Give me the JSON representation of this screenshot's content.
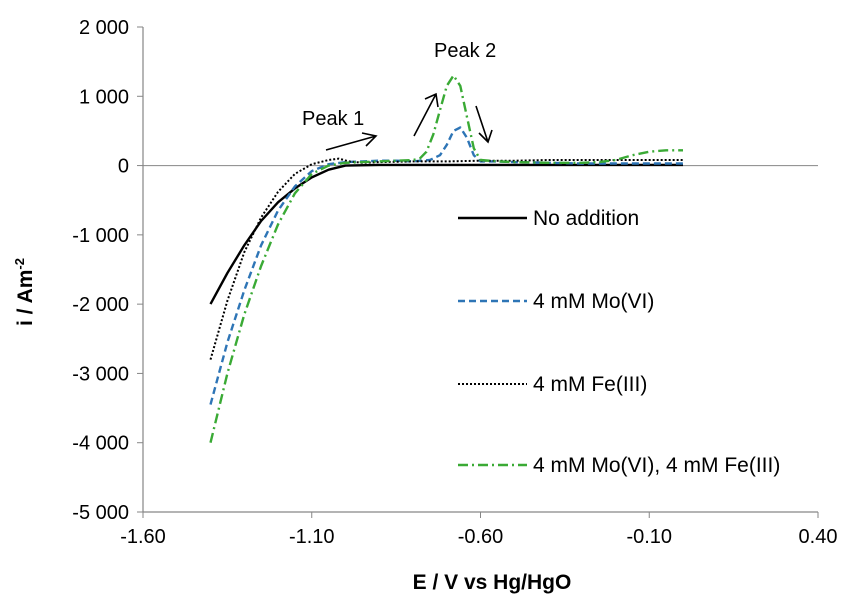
{
  "chart_data": {
    "type": "line",
    "xlabel": "E / V vs Hg/HgO",
    "ylabel_main": "i / Am",
    "ylabel_sup": "-2",
    "xlim": [
      -1.6,
      0.4
    ],
    "ylim": [
      -5000,
      2000
    ],
    "x_ticks": [
      -1.6,
      -1.1,
      -0.6,
      -0.1,
      0.4
    ],
    "x_tick_labels": [
      "-1.60",
      "-1.10",
      "-0.60",
      "-0.10",
      "0.40"
    ],
    "y_ticks": [
      2000,
      1000,
      0,
      -1000,
      -2000,
      -3000,
      -4000,
      -5000
    ],
    "y_tick_labels": [
      "2 000",
      "1 000",
      "0",
      "-1 000",
      "-2 000",
      "-3 000",
      "-4 000",
      "-5 000"
    ],
    "grid": false,
    "legend_position": "right",
    "series": [
      {
        "name": "No addition",
        "color": "#000000",
        "style": "solid",
        "x": [
          -1.4,
          -1.35,
          -1.3,
          -1.25,
          -1.2,
          -1.15,
          -1.1,
          -1.05,
          -1.0,
          -0.9,
          -0.7,
          -0.5,
          -0.3,
          -0.1,
          0.0
        ],
        "y": [
          -2000,
          -1550,
          -1150,
          -800,
          -530,
          -330,
          -170,
          -60,
          0,
          10,
          10,
          10,
          10,
          10,
          10
        ]
      },
      {
        "name": "4 mM Mo(VI)",
        "color": "#2E75B6",
        "style": "dashed",
        "x": [
          -1.4,
          -1.35,
          -1.3,
          -1.25,
          -1.2,
          -1.15,
          -1.1,
          -1.05,
          -1.0,
          -0.95,
          -0.9,
          -0.85,
          -0.8,
          -0.75,
          -0.72,
          -0.7,
          -0.68,
          -0.66,
          -0.64,
          -0.62,
          -0.6,
          -0.55,
          -0.5,
          -0.4,
          -0.3,
          -0.2,
          -0.1,
          0.0
        ],
        "y": [
          -3450,
          -2550,
          -1800,
          -1150,
          -650,
          -300,
          -80,
          20,
          50,
          60,
          70,
          70,
          60,
          80,
          150,
          300,
          500,
          550,
          400,
          150,
          60,
          60,
          50,
          40,
          30,
          30,
          30,
          30
        ]
      },
      {
        "name": "4 mM Fe(III)",
        "color": "#000000",
        "style": "dotted",
        "x": [
          -1.4,
          -1.35,
          -1.3,
          -1.25,
          -1.2,
          -1.15,
          -1.1,
          -1.05,
          -1.02,
          -0.99,
          -0.95,
          -0.9,
          -0.8,
          -0.7,
          -0.6,
          -0.5,
          -0.4,
          -0.3,
          -0.2,
          -0.1,
          0.0
        ],
        "y": [
          -2800,
          -1950,
          -1250,
          -750,
          -380,
          -120,
          20,
          80,
          100,
          60,
          40,
          50,
          60,
          60,
          70,
          70,
          80,
          80,
          80,
          80,
          80
        ]
      },
      {
        "name": "4 mM Mo(VI), 4 mM Fe(III)",
        "color": "#3AAA35",
        "style": "dashdot",
        "x": [
          -1.4,
          -1.35,
          -1.3,
          -1.25,
          -1.2,
          -1.15,
          -1.1,
          -1.05,
          -1.0,
          -0.95,
          -0.9,
          -0.85,
          -0.8,
          -0.78,
          -0.76,
          -0.74,
          -0.72,
          -0.7,
          -0.68,
          -0.66,
          -0.64,
          -0.62,
          -0.6,
          -0.55,
          -0.5,
          -0.4,
          -0.3,
          -0.25,
          -0.2,
          -0.15,
          -0.1,
          -0.05,
          0.0
        ],
        "y": [
          -4000,
          -3000,
          -2150,
          -1450,
          -850,
          -400,
          -120,
          0,
          40,
          50,
          60,
          70,
          80,
          100,
          200,
          450,
          800,
          1150,
          1300,
          1150,
          700,
          250,
          80,
          60,
          50,
          40,
          40,
          50,
          80,
          150,
          200,
          220,
          220
        ]
      }
    ],
    "annotations": [
      {
        "text": "Peak 1",
        "x": -0.95,
        "y": 530
      },
      {
        "text": "Peak 2",
        "x": -0.72,
        "y": 1700
      }
    ]
  }
}
